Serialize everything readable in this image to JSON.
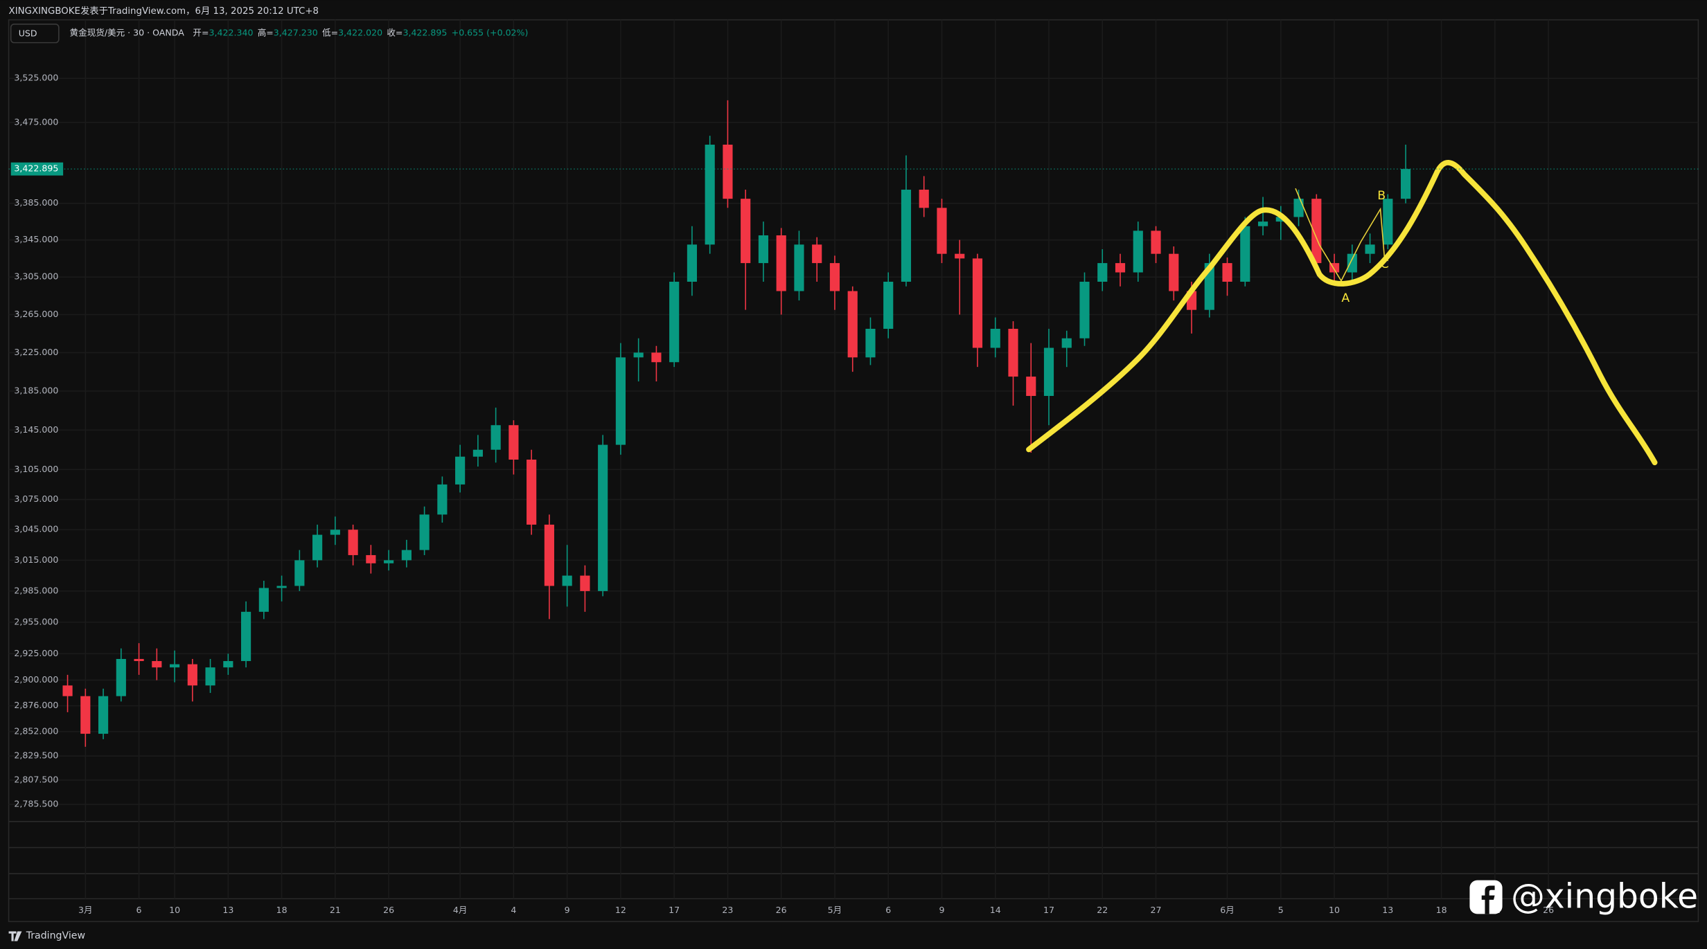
{
  "header": {
    "publisher": "XINGXINGBOKE发表于TradingView.com，6月 13, 2025 20:12 UTC+8",
    "currency": "USD"
  },
  "chart_data": {
    "type": "candlestick",
    "symbol": "黄金现货/美元 · 30 · OANDA",
    "legend": [
      {
        "label": "开=",
        "value": "3,422.340"
      },
      {
        "label": "高=",
        "value": "3,427.230"
      },
      {
        "label": "低=",
        "value": "3,422.020"
      },
      {
        "label": "收=",
        "value": "3,422.895"
      }
    ],
    "change": "+0.655 (+0.02%)",
    "x": [
      -1,
      0,
      1,
      2,
      3,
      4,
      5,
      6,
      7,
      8,
      9,
      10,
      11,
      12,
      13,
      14,
      15,
      16,
      17,
      18,
      19,
      20,
      21,
      22,
      23,
      24,
      25,
      26,
      27,
      28,
      29,
      30,
      31,
      32,
      33,
      34,
      35,
      36,
      37,
      38,
      39,
      40,
      41,
      42,
      43,
      44,
      45,
      46,
      47,
      48,
      49,
      50,
      51,
      52,
      53,
      54,
      55,
      56,
      57,
      58,
      59,
      60,
      61,
      62,
      63,
      64,
      65,
      66,
      67,
      68,
      69,
      70,
      71,
      72,
      73,
      74
    ],
    "open": [
      2895,
      2885,
      2850,
      2885,
      2920,
      2918,
      2912,
      2915,
      2895,
      2912,
      2918,
      2965,
      2988,
      2990,
      3015,
      3040,
      3045,
      3020,
      3012,
      3015,
      3025,
      3060,
      3090,
      3118,
      3125,
      3150,
      3115,
      3050,
      2990,
      3000,
      2985,
      3130,
      3220,
      3225,
      3215,
      3300,
      3340,
      3450,
      3390,
      3320,
      3350,
      3290,
      3340,
      3320,
      3290,
      3220,
      3250,
      3300,
      3400,
      3380,
      3330,
      3325,
      3230,
      3250,
      3200,
      3180,
      3230,
      3240,
      3300,
      3320,
      3310,
      3355,
      3330,
      3290,
      3270,
      3320,
      3300,
      3360,
      3365,
      3370,
      3390,
      3320,
      3310,
      3330,
      3340,
      3390
    ],
    "high": [
      2905,
      2892,
      2892,
      2930,
      2935,
      2930,
      2928,
      2920,
      2920,
      2925,
      2975,
      2995,
      3000,
      3025,
      3050,
      3058,
      3050,
      3030,
      3025,
      3035,
      3068,
      3098,
      3130,
      3140,
      3168,
      3155,
      3125,
      3060,
      3030,
      3010,
      3140,
      3235,
      3240,
      3232,
      3310,
      3360,
      3460,
      3500,
      3400,
      3365,
      3358,
      3355,
      3348,
      3328,
      3295,
      3262,
      3310,
      3438,
      3415,
      3390,
      3345,
      3330,
      3262,
      3258,
      3235,
      3250,
      3248,
      3310,
      3335,
      3330,
      3365,
      3360,
      3338,
      3300,
      3330,
      3326,
      3370,
      3392,
      3382,
      3400,
      3395,
      3330,
      3340,
      3352,
      3395,
      3450
    ],
    "low": [
      2870,
      2838,
      2845,
      2880,
      2905,
      2900,
      2898,
      2880,
      2888,
      2905,
      2912,
      2958,
      2975,
      2985,
      3008,
      3030,
      3010,
      3002,
      3005,
      3008,
      3020,
      3052,
      3082,
      3108,
      3112,
      3100,
      3040,
      2958,
      2970,
      2965,
      2980,
      3120,
      3195,
      3195,
      3210,
      3285,
      3330,
      3380,
      3270,
      3300,
      3265,
      3280,
      3300,
      3270,
      3205,
      3212,
      3240,
      3295,
      3370,
      3320,
      3265,
      3210,
      3220,
      3170,
      3122,
      3150,
      3210,
      3232,
      3290,
      3295,
      3300,
      3320,
      3280,
      3245,
      3262,
      3285,
      3295,
      3350,
      3345,
      3360,
      3312,
      3298,
      3300,
      3320,
      3335,
      3385
    ],
    "close": [
      2885,
      2850,
      2885,
      2920,
      2918,
      2912,
      2915,
      2895,
      2912,
      2918,
      2965,
      2988,
      2990,
      3015,
      3040,
      3045,
      3020,
      3012,
      3015,
      3025,
      3060,
      3090,
      3118,
      3125,
      3150,
      3115,
      3050,
      2990,
      3000,
      2985,
      3130,
      3220,
      3225,
      3215,
      3300,
      3340,
      3450,
      3390,
      3320,
      3350,
      3290,
      3340,
      3320,
      3290,
      3220,
      3250,
      3300,
      3400,
      3380,
      3330,
      3325,
      3230,
      3250,
      3200,
      3180,
      3230,
      3240,
      3300,
      3320,
      3310,
      3355,
      3330,
      3290,
      3270,
      3320,
      3300,
      3360,
      3365,
      3370,
      3390,
      3320,
      3310,
      3330,
      3340,
      3390,
      3422.895
    ],
    "up_color": "#089981",
    "down_color": "#f23645",
    "log_scale": true,
    "grid": true,
    "xlim": [
      -4.3,
      90.4
    ],
    "ylim": [
      2773,
      3590
    ],
    "xticks": [
      {
        "value": 0,
        "label": "3月"
      },
      {
        "value": 3,
        "label": "6"
      },
      {
        "value": 5,
        "label": "10"
      },
      {
        "value": 8,
        "label": "13"
      },
      {
        "value": 11,
        "label": "18"
      },
      {
        "value": 14,
        "label": "21"
      },
      {
        "value": 17,
        "label": "26"
      },
      {
        "value": 21,
        "label": "4月"
      },
      {
        "value": 24,
        "label": "4"
      },
      {
        "value": 27,
        "label": "9"
      },
      {
        "value": 30,
        "label": "12"
      },
      {
        "value": 33,
        "label": "17"
      },
      {
        "value": 36,
        "label": "23"
      },
      {
        "value": 39,
        "label": "26"
      },
      {
        "value": 42,
        "label": "5月"
      },
      {
        "value": 45,
        "label": "6"
      },
      {
        "value": 48,
        "label": "9"
      },
      {
        "value": 51,
        "label": "14"
      },
      {
        "value": 54,
        "label": "17"
      },
      {
        "value": 57,
        "label": "22"
      },
      {
        "value": 60,
        "label": "27"
      },
      {
        "value": 64,
        "label": "6月"
      },
      {
        "value": 67,
        "label": "5"
      },
      {
        "value": 70,
        "label": "10"
      },
      {
        "value": 73,
        "label": "13"
      },
      {
        "value": 76,
        "label": "18"
      },
      {
        "value": 79,
        "label": "21"
      },
      {
        "value": 82,
        "label": "26"
      }
    ],
    "yticks": [
      {
        "value": 3525,
        "label": "3,525.000"
      },
      {
        "value": 3475,
        "label": "3,475.000"
      },
      {
        "value": 3385,
        "label": "3,385.000"
      },
      {
        "value": 3345,
        "label": "3,345.000"
      },
      {
        "value": 3305,
        "label": "3,305.000"
      },
      {
        "value": 3265,
        "label": "3,265.000"
      },
      {
        "value": 3225,
        "label": "3,225.000"
      },
      {
        "value": 3185,
        "label": "3,185.000"
      },
      {
        "value": 3145,
        "label": "3,145.000"
      },
      {
        "value": 3105,
        "label": "3,105.000"
      },
      {
        "value": 3075,
        "label": "3,075.000"
      },
      {
        "value": 3045,
        "label": "3,045.000"
      },
      {
        "value": 3015,
        "label": "3,015.000"
      },
      {
        "value": 2985,
        "label": "2,985.000"
      },
      {
        "value": 2955,
        "label": "2,955.000"
      },
      {
        "value": 2925,
        "label": "2,925.000"
      },
      {
        "value": 2900,
        "label": "2,900.000"
      },
      {
        "value": 2876,
        "label": "2,876.000"
      },
      {
        "value": 2852,
        "label": "2,852.000"
      },
      {
        "value": 2829.5,
        "label": "2,829.500"
      },
      {
        "value": 2807.5,
        "label": "2,807.500"
      },
      {
        "value": 2785.5,
        "label": "2,785.500"
      }
    ],
    "last_price": {
      "value": 3422.895,
      "label": "3,422.895"
    },
    "annotations": [
      "A",
      "B",
      "C"
    ]
  },
  "footer": {
    "brand": "TradingView",
    "watermark": "@xingboke"
  }
}
